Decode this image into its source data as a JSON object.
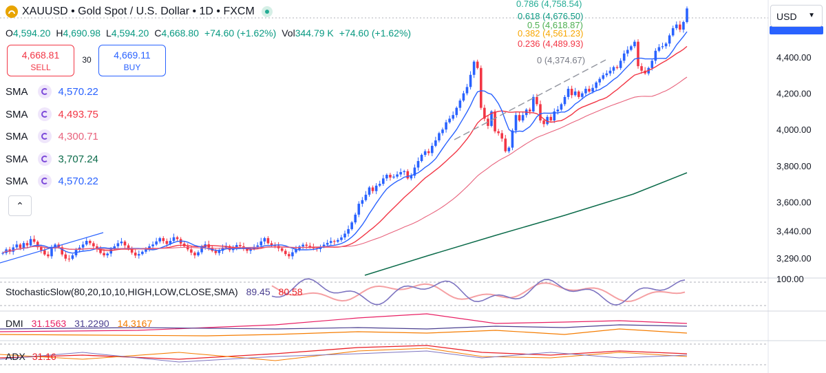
{
  "header": {
    "title": "XAUUSD • Gold Spot / U.S. Dollar • 1D • FXCM",
    "ohlc": {
      "o_label": "O",
      "o": "4,594.20",
      "h_label": "H",
      "h": "4,690.98",
      "l_label": "L",
      "l": "4,594.20",
      "c_label": "C",
      "c": "4,668.80",
      "change": "+74.60 (+1.62%)",
      "vol_label": "Vol",
      "vol": "344.79 K",
      "vol_change": "+74.60 (+1.62%)"
    }
  },
  "trade": {
    "sell_price": "4,668.81",
    "sell_label": "SELL",
    "spread": "30",
    "buy_price": "4,669.11",
    "buy_label": "BUY"
  },
  "currency": "USD",
  "indicators": [
    {
      "name": "SMA",
      "value": "4,570.22",
      "color": "#2962ff"
    },
    {
      "name": "SMA",
      "value": "4,493.75",
      "color": "#f23645"
    },
    {
      "name": "SMA",
      "value": "4,300.71",
      "color": "#e8627c"
    },
    {
      "name": "SMA",
      "value": "3,707.24",
      "color": "#0b6b4a"
    },
    {
      "name": "SMA",
      "value": "4,570.22",
      "color": "#2962ff"
    }
  ],
  "stochastic": {
    "label": "StochasticSlow(80,20,10,10,HIGH,LOW,CLOSE,SMA)",
    "k": "89.45",
    "d": "80.58",
    "k_color": "#4a3f8f",
    "d_color": "#e81e25",
    "axis_label": "100.00"
  },
  "dmi": {
    "label": "DMI",
    "v1": "31.1563",
    "v2": "31.2290",
    "v3": "14.3167",
    "c1": "#e81e63",
    "c2": "#4a3f8f",
    "c3": "#f57c00"
  },
  "adx": {
    "label": "ADX",
    "value": "31.16",
    "color": "#e81e25"
  },
  "colors": {
    "up": "#2962ff",
    "down": "#f23645",
    "fib_786": "#22ab94",
    "fib_618": "#089981",
    "fib_5": "#4caf50",
    "fib_382": "#f7a600",
    "fib_236": "#f23645",
    "fib_0": "#787b86"
  },
  "chart_data": {
    "type": "candlestick",
    "symbol": "XAUUSD",
    "timeframe": "1D",
    "y_axis": {
      "ticks": [
        3290,
        3440,
        3600,
        3800,
        4000,
        4200,
        4400
      ],
      "tick_labels": [
        "3,290.00",
        "3,440.00",
        "3,600.00",
        "3,800.00",
        "4,000.00",
        "4,200.00",
        "4,400.00"
      ],
      "range": [
        3150,
        4800
      ]
    },
    "last_price": 4668.8,
    "fibonacci": [
      {
        "level": "0.786",
        "price": "4,758.54",
        "value": 4758.54
      },
      {
        "level": "0.618",
        "price": "4,676.50",
        "value": 4676.5
      },
      {
        "level": "0.5",
        "price": "4,618.87",
        "value": 4618.87
      },
      {
        "level": "0.382",
        "price": "4,561.23",
        "value": 4561.23
      },
      {
        "level": "0.236",
        "price": "4,489.93",
        "value": 4489.93
      },
      {
        "level": "0",
        "price": "4,374.67",
        "value": 4374.67
      }
    ],
    "closes": [
      3318,
      3338,
      3325,
      3349,
      3365,
      3345,
      3373,
      3360,
      3395,
      3380,
      3350,
      3333,
      3310,
      3300,
      3343,
      3365,
      3350,
      3310,
      3287,
      3286,
      3305,
      3335,
      3348,
      3365,
      3385,
      3372,
      3355,
      3340,
      3318,
      3305,
      3315,
      3340,
      3355,
      3372,
      3381,
      3360,
      3340,
      3320,
      3304,
      3312,
      3325,
      3340,
      3355,
      3365,
      3382,
      3400,
      3384,
      3368,
      3385,
      3405,
      3395,
      3370,
      3355,
      3338,
      3320,
      3305,
      3322,
      3350,
      3366,
      3348,
      3330,
      3318,
      3330,
      3348,
      3356,
      3334,
      3350,
      3362,
      3355,
      3340,
      3330,
      3340,
      3352,
      3360,
      3382,
      3400,
      3372,
      3360,
      3358,
      3344,
      3330,
      3312,
      3300,
      3322,
      3338,
      3354,
      3364,
      3358,
      3350,
      3344,
      3340,
      3353,
      3364,
      3374,
      3384,
      3380,
      3390,
      3404,
      3425,
      3450,
      3487,
      3530,
      3590,
      3610,
      3640,
      3680,
      3660,
      3690,
      3700,
      3730,
      3750,
      3735,
      3740,
      3752,
      3765,
      3770,
      3730,
      3745,
      3790,
      3826,
      3860,
      3880,
      3870,
      3910,
      3940,
      3980,
      4000,
      4040,
      4060,
      4080,
      4120,
      4160,
      4200,
      4235,
      4302,
      4375,
      4340,
      4120,
      4060,
      4020,
      4100,
      3990,
      3980,
      3950,
      3880,
      3900,
      3995,
      4080,
      4050,
      4080,
      4110,
      4100,
      4180,
      4140,
      4050,
      4030,
      4070,
      4050,
      4100,
      4110,
      4140,
      4180,
      4225,
      4190,
      4210,
      4180,
      4200,
      4225,
      4210,
      4230,
      4260,
      4280,
      4300,
      4310,
      4325,
      4345,
      4340,
      4380,
      4420,
      4440,
      4460,
      4485,
      4350,
      4325,
      4310,
      4340,
      4380,
      4435,
      4455,
      4460,
      4475,
      4520,
      4560,
      4580,
      4552,
      4594,
      4668.8
    ]
  }
}
